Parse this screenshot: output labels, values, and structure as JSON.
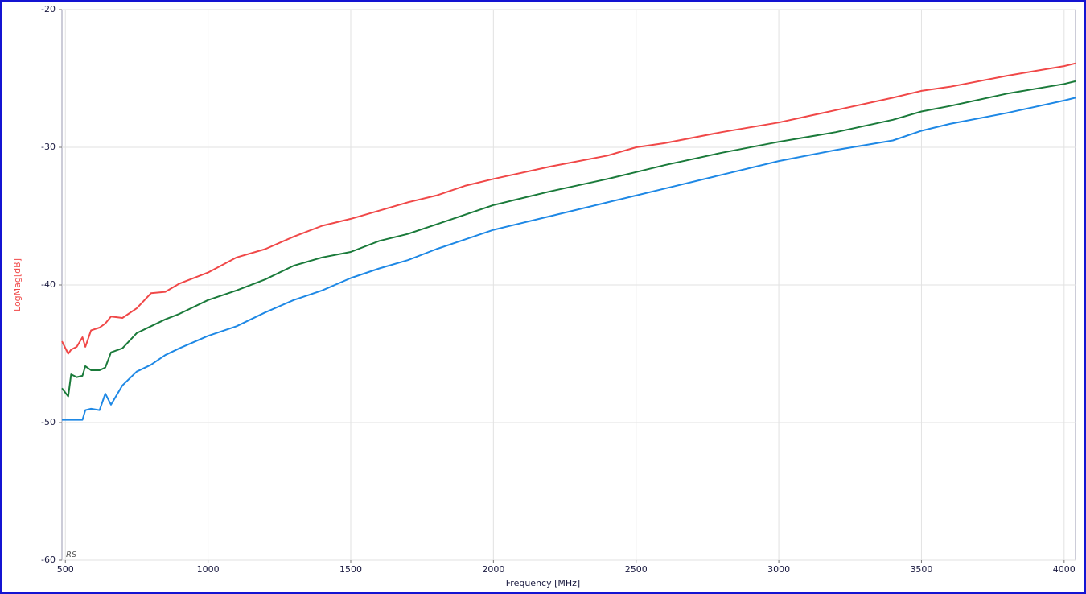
{
  "chart_data": {
    "type": "line",
    "x_label": "Frequency [MHz]",
    "y_label": "LogMag[dB]",
    "watermark": "RS",
    "x": [
      488,
      510,
      520,
      540,
      560,
      570,
      590,
      620,
      640,
      660,
      700,
      750,
      800,
      850,
      900,
      1000,
      1100,
      1200,
      1300,
      1400,
      1500,
      1600,
      1700,
      1800,
      1900,
      2000,
      2200,
      2400,
      2500,
      2600,
      2800,
      3000,
      3200,
      3400,
      3500,
      3600,
      3800,
      4000,
      4040
    ],
    "series": [
      {
        "color": "#f04848",
        "values": [
          -44.1,
          -45.0,
          -44.7,
          -44.5,
          -43.8,
          -44.5,
          -43.3,
          -43.1,
          -42.8,
          -42.3,
          -42.4,
          -41.7,
          -40.6,
          -40.5,
          -39.9,
          -39.1,
          -38.0,
          -37.4,
          -36.5,
          -35.7,
          -35.2,
          -34.6,
          -34.0,
          -33.5,
          -32.8,
          -32.3,
          -31.4,
          -30.6,
          -30.0,
          -29.7,
          -28.9,
          -28.2,
          -27.3,
          -26.4,
          -25.9,
          -25.6,
          -24.8,
          -24.1,
          -23.9
        ]
      },
      {
        "color": "#1a7a3a",
        "values": [
          -47.5,
          -48.1,
          -46.5,
          -46.7,
          -46.6,
          -45.9,
          -46.2,
          -46.2,
          -46.0,
          -44.9,
          -44.6,
          -43.5,
          -43.0,
          -42.5,
          -42.1,
          -41.1,
          -40.4,
          -39.6,
          -38.6,
          -38.0,
          -37.6,
          -36.8,
          -36.3,
          -35.6,
          -34.9,
          -34.2,
          -33.2,
          -32.3,
          -31.8,
          -31.3,
          -30.4,
          -29.6,
          -28.9,
          -28.0,
          -27.4,
          -27.0,
          -26.1,
          -25.4,
          -25.2
        ]
      },
      {
        "color": "#1e88e5",
        "values": [
          -49.8,
          -49.8,
          -49.8,
          -49.8,
          -49.8,
          -49.1,
          -49.0,
          -49.1,
          -47.9,
          -48.7,
          -47.3,
          -46.3,
          -45.8,
          -45.1,
          -44.6,
          -43.7,
          -43.0,
          -42.0,
          -41.1,
          -40.4,
          -39.5,
          -38.8,
          -38.2,
          -37.4,
          -36.7,
          -36.0,
          -35.0,
          -34.0,
          -33.5,
          -33.0,
          -32.0,
          -31.0,
          -30.2,
          -29.5,
          -28.8,
          -28.3,
          -27.5,
          -26.6,
          -26.4
        ]
      }
    ],
    "xlim": [
      488,
      4040
    ],
    "xticks": [
      500,
      1000,
      1500,
      2000,
      2500,
      3000,
      3500,
      4000
    ],
    "ylim": [
      -60,
      -20
    ],
    "yticks": [
      -60,
      -50,
      -40,
      -30,
      -20
    ],
    "grid": true
  }
}
